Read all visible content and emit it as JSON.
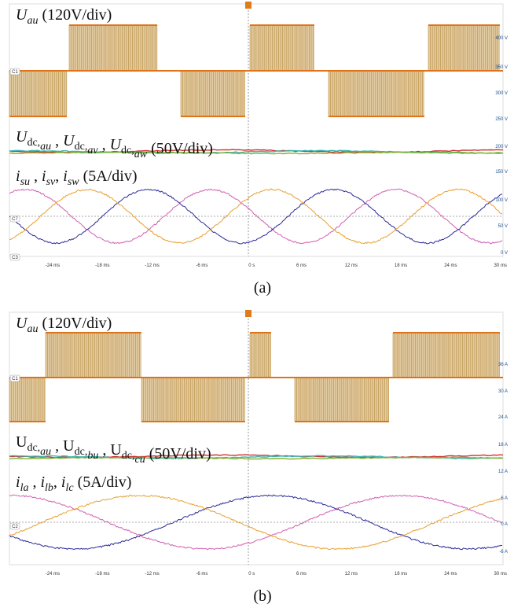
{
  "panels": [
    {
      "caption": "(a)",
      "annotations": [
        [
          {
            "text": "U",
            "italic": true
          },
          {
            "text": "au",
            "italic": true,
            "sub": true
          },
          {
            "text": " (120V/div)"
          }
        ],
        [
          {
            "text": "U",
            "italic": true
          },
          {
            "text": "dc,",
            "sub": true
          },
          {
            "text": "au",
            "italic": true,
            "sub": true
          },
          {
            "text": " , "
          },
          {
            "text": "U",
            "italic": true
          },
          {
            "text": "dc,",
            "sub": true
          },
          {
            "text": "av",
            "italic": true,
            "sub": true
          },
          {
            "text": " , "
          },
          {
            "text": "U",
            "italic": true
          },
          {
            "text": "dc,",
            "sub": true
          },
          {
            "text": "aw",
            "italic": true,
            "sub": true
          },
          {
            "text": " (50V/div)"
          }
        ],
        [
          {
            "text": "i",
            "italic": true
          },
          {
            "text": "su",
            "italic": true,
            "sub": true
          },
          {
            "text": " , "
          },
          {
            "text": "i",
            "italic": true
          },
          {
            "text": "sv",
            "italic": true,
            "sub": true
          },
          {
            "text": ", "
          },
          {
            "text": "i",
            "italic": true
          },
          {
            "text": "sw",
            "italic": true,
            "sub": true
          },
          {
            "text": " (5A/div)"
          }
        ]
      ],
      "xticks": [
        "-24 ms",
        "-18 ms",
        "-12 ms",
        "-6 ms",
        "0 s",
        "6 ms",
        "12 ms",
        "18 ms",
        "24 ms",
        "30 ms"
      ],
      "right_ticks": [
        "400 V",
        "350 V",
        "300 V",
        "250 V",
        "200 V",
        "150 V",
        "100 V",
        "50 V",
        "0 V"
      ],
      "channels": [
        "C1",
        "C7",
        "C3"
      ]
    },
    {
      "caption": "(b)",
      "annotations": [
        [
          {
            "text": "U",
            "italic": true
          },
          {
            "text": "au",
            "italic": true,
            "sub": true
          },
          {
            "text": " (120V/div)"
          }
        ],
        [
          {
            "text": "U"
          },
          {
            "text": "dc,",
            "sub": true
          },
          {
            "text": "au",
            "italic": true,
            "sub": true
          },
          {
            "text": " , "
          },
          {
            "text": "U"
          },
          {
            "text": "dc,",
            "sub": true
          },
          {
            "text": "bu",
            "italic": true,
            "sub": true
          },
          {
            "text": " , "
          },
          {
            "text": "U"
          },
          {
            "text": "dc,",
            "sub": true
          },
          {
            "text": "cu",
            "italic": true,
            "sub": true
          },
          {
            "text": " (50V/div)"
          }
        ],
        [
          {
            "text": "i",
            "italic": true
          },
          {
            "text": "la",
            "italic": true,
            "sub": true
          },
          {
            "text": " , "
          },
          {
            "text": "i",
            "italic": true
          },
          {
            "text": "lb",
            "italic": true,
            "sub": true
          },
          {
            "text": ", "
          },
          {
            "text": "i",
            "italic": true
          },
          {
            "text": "lc",
            "italic": true,
            "sub": true
          },
          {
            "text": " (5A/div)"
          }
        ]
      ],
      "xticks": [
        "-24 ms",
        "-18 ms",
        "-12 ms",
        "-6 ms",
        "0 s",
        "6 ms",
        "12 ms",
        "18 ms",
        "24 ms",
        "30 ms"
      ],
      "right_ticks": [
        "36 A",
        "30 A",
        "24 A",
        "18 A",
        "12 A",
        "6 A",
        "0 A",
        "-6 A"
      ],
      "channels": [
        "C1",
        "C2"
      ]
    }
  ]
}
